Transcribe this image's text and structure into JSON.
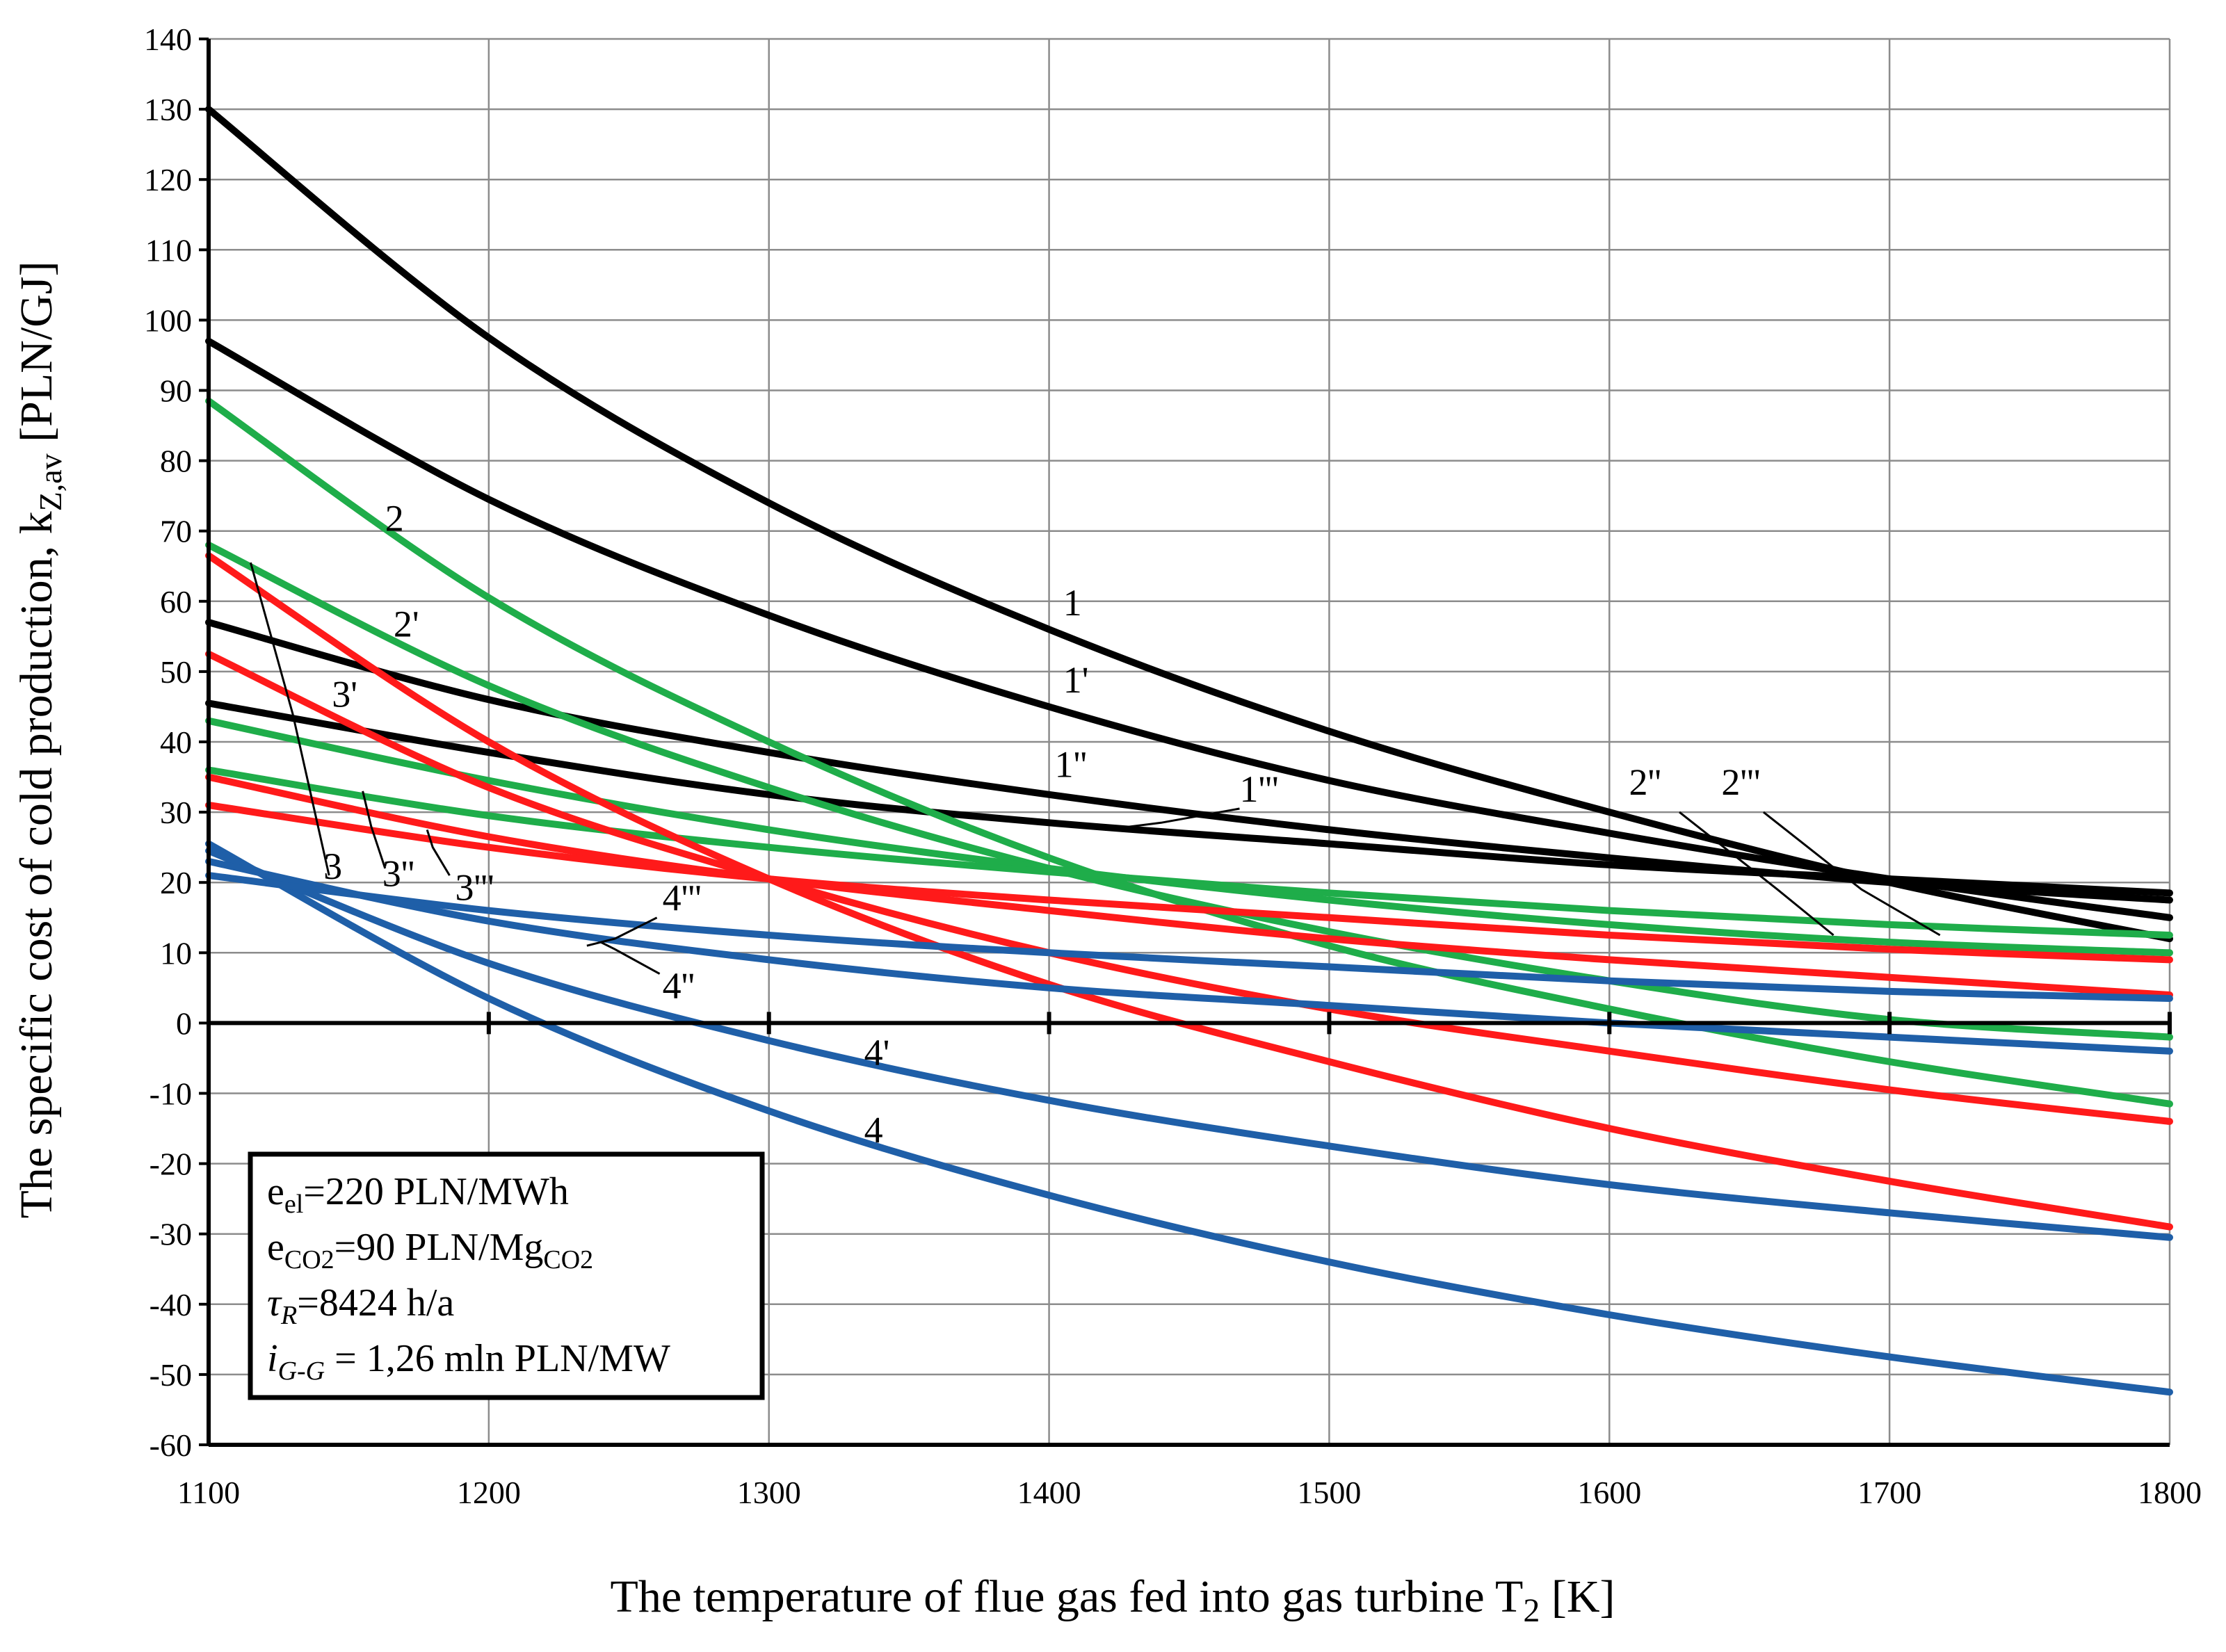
{
  "chart_data": {
    "type": "line",
    "title": "",
    "xlabel": "The temperature of flue gas fed into gas turbine T",
    "xlabel_sub": "2",
    "xlabel_unit": " [K]",
    "ylabel": "The specific cost of cold production, k",
    "ylabel_sub": "Z,av",
    "ylabel_unit": " [PLN/GJ]",
    "xlim": [
      1100,
      1800
    ],
    "ylim": [
      -60,
      140
    ],
    "x_ticks": [
      1100,
      1200,
      1300,
      1400,
      1500,
      1600,
      1700,
      1800
    ],
    "y_ticks": [
      -60,
      -50,
      -40,
      -30,
      -20,
      -10,
      0,
      10,
      20,
      30,
      40,
      50,
      60,
      70,
      80,
      90,
      100,
      110,
      120,
      130,
      140
    ],
    "grid": true,
    "x": [
      1100,
      1200,
      1300,
      1400,
      1500,
      1600,
      1700,
      1800
    ],
    "colors": {
      "black": "#000000",
      "green": "#1fad4a",
      "red": "#ff1a1a",
      "blue": "#1f5fa8"
    },
    "series": [
      {
        "name": "1",
        "color": "black",
        "values": [
          130,
          97.5,
          74,
          56,
          41.5,
          30,
          20,
          12
        ]
      },
      {
        "name": "1'",
        "color": "black",
        "values": [
          97,
          74.5,
          58,
          45,
          34.5,
          27,
          20.5,
          15
        ]
      },
      {
        "name": "1''",
        "color": "black",
        "values": [
          57,
          46,
          38.5,
          32.5,
          27.5,
          23.5,
          20,
          17.5
        ]
      },
      {
        "name": "1'''",
        "color": "black",
        "values": [
          45.5,
          38.5,
          32.5,
          28.5,
          25.5,
          22.5,
          20.5,
          18.5
        ]
      },
      {
        "name": "2",
        "color": "green",
        "values": [
          88.5,
          60.5,
          40,
          23.5,
          11,
          2,
          -5.5,
          -11.5
        ]
      },
      {
        "name": "2'",
        "color": "green",
        "values": [
          68,
          48,
          33.5,
          22,
          13,
          6,
          0.5,
          -2
        ]
      },
      {
        "name": "2''",
        "color": "green",
        "values": [
          43,
          34.5,
          27.5,
          22,
          17.5,
          14,
          11.5,
          10
        ]
      },
      {
        "name": "2'''",
        "color": "green",
        "values": [
          36,
          29.5,
          25,
          21.5,
          18.5,
          16,
          14,
          12.5
        ]
      },
      {
        "name": "3",
        "color": "red",
        "values": [
          66.5,
          40,
          20.5,
          5.5,
          -5.5,
          -15,
          -22.5,
          -29
        ]
      },
      {
        "name": "3'",
        "color": "red",
        "values": [
          52.5,
          33.5,
          20.5,
          10,
          2,
          -4,
          -9.5,
          -14
        ]
      },
      {
        "name": "3''",
        "color": "red",
        "values": [
          35,
          26.5,
          20.5,
          16,
          12,
          9,
          6.5,
          4
        ]
      },
      {
        "name": "3'''",
        "color": "red",
        "values": [
          31,
          25,
          20.5,
          17.5,
          15,
          12.5,
          10.5,
          9
        ]
      },
      {
        "name": "4",
        "color": "blue",
        "values": [
          25.5,
          3.5,
          -12.5,
          -24.5,
          -34,
          -41.5,
          -47.5,
          -52.5
        ]
      },
      {
        "name": "4'",
        "color": "blue",
        "values": [
          24.5,
          8.5,
          -2.5,
          -11,
          -17.5,
          -23,
          -27,
          -30.5
        ]
      },
      {
        "name": "4''",
        "color": "blue",
        "values": [
          23,
          14.5,
          9,
          5,
          2.5,
          0,
          -2,
          -4
        ]
      },
      {
        "name": "4'''",
        "color": "blue",
        "values": [
          21,
          16,
          12.5,
          10,
          8,
          6,
          4.5,
          3.5
        ]
      }
    ],
    "annotations": {
      "legend_box": {
        "line1": "e",
        "line1_sub": "el",
        "line1_rest": "=220 PLN/MWh",
        "line2": "e",
        "line2_sub": "CO2",
        "line2_mid": "=90 PLN/Mg",
        "line2_sub2": "CO2",
        "line3": "τ",
        "line3_sub": "R",
        "line3_rest": "=8424 h/a",
        "line4": "i",
        "line4_sub": "G-G",
        "line4_rest": " = 1,26 mln PLN/MW"
      }
    }
  }
}
